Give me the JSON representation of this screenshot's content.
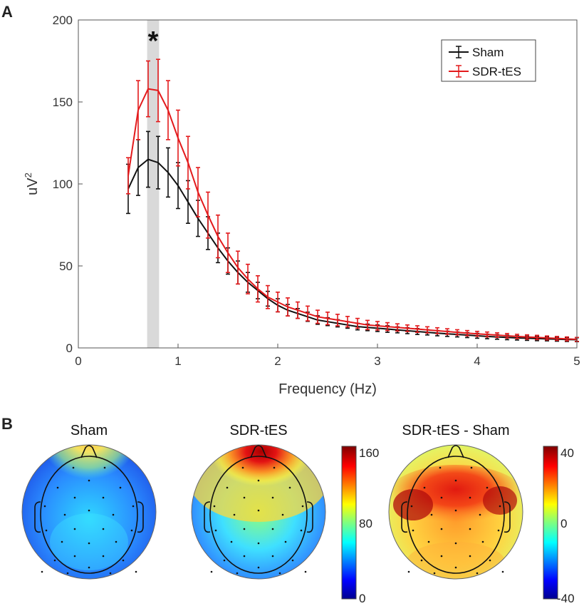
{
  "panels": {
    "a_letter": "A",
    "b_letter": "B"
  },
  "chart_data": [
    {
      "type": "line",
      "title": "",
      "xlabel": "Frequency (Hz)",
      "ylabel_base": "uV",
      "ylabel_sup": "2",
      "xlim": [
        0,
        5
      ],
      "ylim": [
        0,
        200
      ],
      "xticks": [
        "0",
        "1",
        "2",
        "3",
        "4",
        "5"
      ],
      "yticks": [
        "0",
        "50",
        "100",
        "150",
        "200"
      ],
      "significance": {
        "marker": "*",
        "band_hz": [
          0.69,
          0.81
        ]
      },
      "x": [
        0.5,
        0.6,
        0.7,
        0.8,
        0.9,
        1.0,
        1.1,
        1.2,
        1.3,
        1.4,
        1.5,
        1.6,
        1.7,
        1.8,
        1.9,
        2.0,
        2.1,
        2.2,
        2.3,
        2.4,
        2.5,
        2.6,
        2.7,
        2.8,
        2.9,
        3.0,
        3.1,
        3.2,
        3.3,
        3.4,
        3.5,
        3.6,
        3.7,
        3.8,
        3.9,
        4.0,
        4.1,
        4.2,
        4.3,
        4.4,
        4.5,
        4.6,
        4.7,
        4.8,
        4.9,
        5.0
      ],
      "series": [
        {
          "name": "Sham",
          "color": "#111111",
          "values": [
            97,
            110,
            115,
            113,
            107,
            99,
            89,
            79,
            70,
            61,
            53,
            46,
            40,
            35,
            30,
            26,
            23,
            21,
            19,
            17,
            16,
            15,
            14,
            13,
            12.5,
            12,
            11.5,
            11,
            10.5,
            10,
            9.5,
            9,
            8.6,
            8.2,
            7.8,
            7.4,
            7,
            6.7,
            6.4,
            6.1,
            5.9,
            5.7,
            5.5,
            5.3,
            5.1,
            5
          ],
          "err": [
            15,
            17,
            17,
            16,
            15,
            14,
            13,
            11,
            10,
            9,
            8,
            7,
            6,
            5,
            4.5,
            4,
            3.5,
            3,
            2.8,
            2.6,
            2.4,
            2.2,
            2,
            2,
            2,
            2,
            2,
            1.8,
            1.8,
            1.8,
            1.6,
            1.6,
            1.6,
            1.5,
            1.5,
            1.5,
            1.4,
            1.4,
            1.4,
            1.3,
            1.3,
            1.3,
            1.2,
            1.2,
            1.2,
            1.2
          ]
        },
        {
          "name": "SDR-tES",
          "color": "#e31a1c",
          "values": [
            105,
            145,
            158,
            157,
            145,
            128,
            113,
            95,
            81,
            68,
            58,
            49,
            42,
            36,
            31,
            28,
            25,
            23,
            21,
            19,
            18,
            17,
            16,
            15,
            14,
            13.5,
            13,
            12.5,
            12,
            11.5,
            11,
            10.5,
            10,
            9.5,
            9,
            8.6,
            8.2,
            7.8,
            7.4,
            7,
            6.7,
            6.4,
            6.1,
            5.8,
            5.5,
            5.2
          ],
          "err": [
            11,
            18,
            17,
            19,
            18,
            17,
            16,
            15,
            14,
            13,
            12,
            10,
            9,
            8,
            7,
            6,
            5.5,
            5,
            4.5,
            4,
            3.8,
            3.5,
            3.2,
            3,
            2.8,
            2.6,
            2.4,
            2.2,
            2,
            2,
            1.9,
            1.8,
            1.7,
            1.6,
            1.6,
            1.5,
            1.5,
            1.4,
            1.4,
            1.3,
            1.3,
            1.3,
            1.2,
            1.2,
            1.2,
            1.2
          ]
        }
      ]
    },
    {
      "type": "heatmap",
      "title": "Sham",
      "colorbar": {
        "min": 0,
        "max": 160,
        "ticks": [
          "160",
          "80",
          "0"
        ]
      }
    },
    {
      "type": "heatmap",
      "title": "SDR-tES",
      "colorbar": {
        "min": 0,
        "max": 160,
        "ticks": [
          "160",
          "80",
          "0"
        ]
      }
    },
    {
      "type": "heatmap",
      "title": "SDR-tES - Sham",
      "colorbar": {
        "min": -40,
        "max": 40,
        "ticks": [
          "40",
          "0",
          "-40"
        ]
      }
    }
  ]
}
